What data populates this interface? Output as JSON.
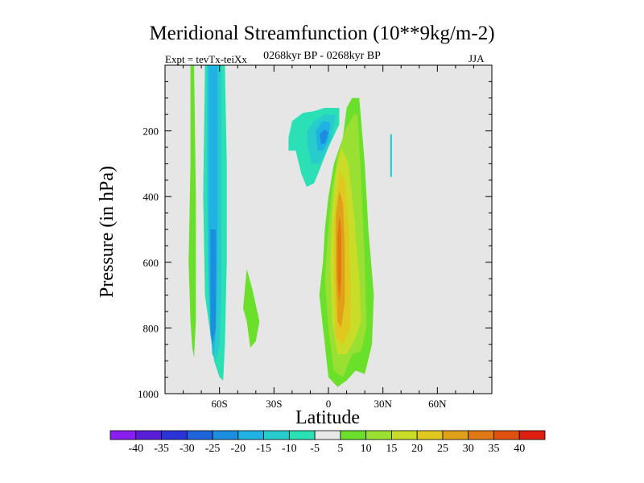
{
  "title": "Meridional Streamfunction (10**9kg/m-2)",
  "subtitle": "0268kyr BP - 0268kyr BP",
  "left_label": "Expt = tevTx-teiXx",
  "right_label": "JJA",
  "chart_data": {
    "type": "heatmap",
    "title": "Meridional Streamfunction (10**9kg/m-2)",
    "xlabel": "Latitude",
    "ylabel": "Pressure (in hPa)",
    "xlim": [
      -90,
      90
    ],
    "ylim": [
      1000,
      0
    ],
    "x_ticks": [
      {
        "value": -60,
        "label": "60S"
      },
      {
        "value": -30,
        "label": "30S"
      },
      {
        "value": 0,
        "label": "0"
      },
      {
        "value": 30,
        "label": "30N"
      },
      {
        "value": 60,
        "label": "60N"
      }
    ],
    "y_ticks": [
      {
        "value": 200,
        "label": "200"
      },
      {
        "value": 400,
        "label": "400"
      },
      {
        "value": 600,
        "label": "600"
      },
      {
        "value": 800,
        "label": "800"
      },
      {
        "value": 1000,
        "label": "1000"
      }
    ],
    "background_color": "#e6e6e6",
    "colorbar": {
      "levels": [
        "-40",
        "-35",
        "-30",
        "-25",
        "-20",
        "-15",
        "-10",
        "-5",
        "5",
        "10",
        "15",
        "20",
        "25",
        "30",
        "35",
        "40"
      ],
      "colors": [
        "#8a1ef0",
        "#5a1ed8",
        "#2a34d8",
        "#1e64dc",
        "#1c8ee0",
        "#20b2e2",
        "#28cccc",
        "#2ae0b4",
        "#e8e8e8",
        "#6ae02a",
        "#9ae032",
        "#c8dc28",
        "#e0c81e",
        "#e0a01a",
        "#e07814",
        "#e0500e",
        "#e01e10"
      ]
    },
    "features": [
      {
        "name": "negative-cell-60S",
        "center_lat": -63,
        "pressure_range": [
          0,
          960
        ],
        "peak_value": -15,
        "color_levels": [
          "#2ae0b4",
          "#28cccc",
          "#1c8ee0"
        ]
      },
      {
        "name": "negative-cell-upper-tropics",
        "center_lat": -5,
        "pressure_range": [
          150,
          350
        ],
        "peak_value": -20,
        "color_levels": [
          "#28cccc",
          "#1c8ee0",
          "#1e64dc"
        ]
      },
      {
        "name": "positive-hadley-cell",
        "center_lat": 5,
        "pressure_range": [
          100,
          980
        ],
        "peak_value": 30,
        "color_levels": [
          "#6ae02a",
          "#9ae032",
          "#c8dc28",
          "#e0c81e",
          "#e0a01a",
          "#e07814"
        ]
      },
      {
        "name": "positive-cell-70S",
        "center_lat": -73,
        "pressure_range": [
          0,
          880
        ],
        "peak_value": 5,
        "color_levels": [
          "#6ae02a"
        ]
      },
      {
        "name": "positive-cell-45S",
        "center_lat": -42,
        "pressure_range": [
          630,
          860
        ],
        "peak_value": 5,
        "color_levels": [
          "#6ae02a"
        ]
      },
      {
        "name": "negative-sliver-35N",
        "center_lat": 35,
        "pressure_range": [
          200,
          340
        ],
        "peak_value": -5,
        "color_levels": [
          "#2ae0b4"
        ]
      }
    ]
  }
}
